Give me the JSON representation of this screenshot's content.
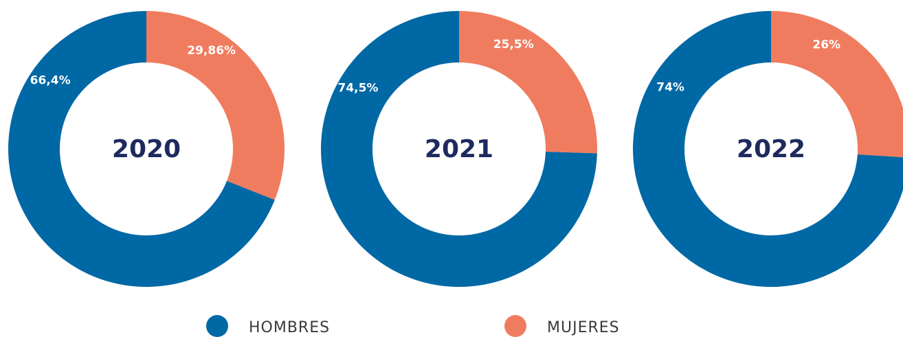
{
  "chart_data": [
    {
      "type": "pie",
      "title": "2020",
      "categories": [
        "HOMBRES",
        "MUJERES"
      ],
      "values": [
        66.4,
        29.86
      ],
      "value_labels": [
        "66,4%",
        "29,86%"
      ],
      "colors": [
        "#0068a5",
        "#f07c5f"
      ],
      "donut": true
    },
    {
      "type": "pie",
      "title": "2021",
      "categories": [
        "HOMBRES",
        "MUJERES"
      ],
      "values": [
        74.5,
        25.5
      ],
      "value_labels": [
        "74,5%",
        "25,5%"
      ],
      "colors": [
        "#0068a5",
        "#f07c5f"
      ],
      "donut": true
    },
    {
      "type": "pie",
      "title": "2022",
      "categories": [
        "HOMBRES",
        "MUJERES"
      ],
      "values": [
        74,
        26
      ],
      "value_labels": [
        "74%",
        "26%"
      ],
      "colors": [
        "#0068a5",
        "#f07c5f"
      ],
      "donut": true
    }
  ]
}
